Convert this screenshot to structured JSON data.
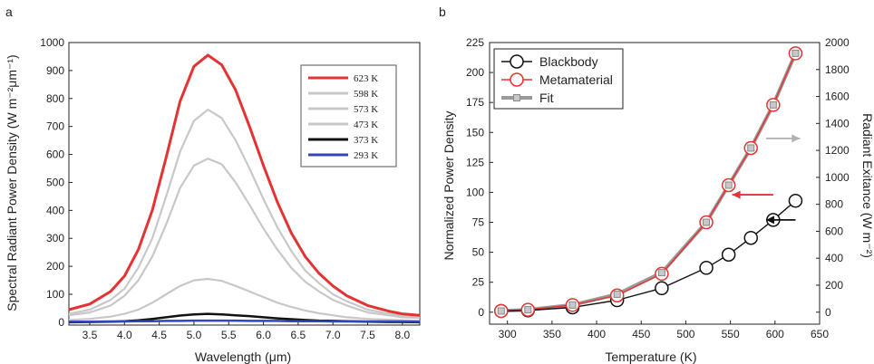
{
  "chart_data": [
    {
      "panel_label": "a",
      "type": "line",
      "xlabel": "Wavelength (μm)",
      "ylabel": "Spectral Radiant Power Density (W m⁻²μm⁻¹)",
      "xlim": [
        3.2,
        8.25
      ],
      "ylim": [
        -10,
        1000
      ],
      "xticks": [
        "3.5",
        "4.0",
        "4.5",
        "5.0",
        "5.5",
        "6.0",
        "6.5",
        "7.0",
        "7.5",
        "8.0"
      ],
      "yticks": [
        "0",
        "100",
        "200",
        "300",
        "400",
        "500",
        "600",
        "700",
        "800",
        "900",
        "1000"
      ],
      "legend_position": "top-right",
      "x": [
        3.2,
        3.5,
        3.8,
        4.0,
        4.2,
        4.4,
        4.6,
        4.8,
        5.0,
        5.2,
        5.4,
        5.6,
        5.8,
        6.0,
        6.2,
        6.4,
        6.6,
        6.8,
        7.0,
        7.2,
        7.5,
        7.8,
        8.0,
        8.25
      ],
      "series": [
        {
          "name": "623 K",
          "color": "#e53232",
          "values": [
            45,
            65,
            110,
            165,
            260,
            400,
            590,
            790,
            915,
            955,
            920,
            830,
            700,
            560,
            430,
            320,
            235,
            175,
            130,
            95,
            60,
            40,
            30,
            25
          ]
        },
        {
          "name": "598 K",
          "color": "#c8c8c8",
          "values": [
            30,
            45,
            80,
            120,
            195,
            300,
            450,
            610,
            720,
            760,
            730,
            650,
            550,
            440,
            340,
            255,
            185,
            140,
            100,
            75,
            45,
            30,
            24,
            20
          ]
        },
        {
          "name": "573 K",
          "color": "#c8c8c8",
          "values": [
            25,
            35,
            60,
            95,
            150,
            235,
            350,
            480,
            560,
            585,
            565,
            500,
            420,
            335,
            260,
            195,
            145,
            110,
            80,
            60,
            35,
            25,
            18,
            15
          ]
        },
        {
          "name": "473 K",
          "color": "#c8c8c8",
          "values": [
            8,
            12,
            20,
            30,
            45,
            70,
            100,
            130,
            150,
            155,
            148,
            130,
            110,
            90,
            70,
            55,
            42,
            32,
            25,
            18,
            12,
            9,
            7,
            5
          ]
        },
        {
          "name": "373 K",
          "color": "#111111",
          "values": [
            0,
            1,
            2,
            4,
            7,
            12,
            18,
            24,
            28,
            30,
            28,
            25,
            22,
            18,
            14,
            11,
            8,
            6,
            5,
            4,
            2,
            1,
            1,
            0
          ]
        },
        {
          "name": "293 K",
          "color": "#3345b8",
          "values": [
            2,
            2,
            3,
            3,
            4,
            4,
            5,
            5,
            6,
            6,
            6,
            6,
            5,
            5,
            5,
            4,
            4,
            4,
            3,
            3,
            3,
            3,
            3,
            2
          ]
        }
      ]
    },
    {
      "panel_label": "b",
      "type": "line",
      "xlabel": "Temperature (K)",
      "ylabel": "Normalized Power Density",
      "y2label": "Radiant Exitance (W m⁻²)",
      "xlim": [
        280,
        650
      ],
      "ylim": [
        -10,
        225
      ],
      "y2lim": [
        -89,
        2000
      ],
      "xticks": [
        "300",
        "350",
        "400",
        "450",
        "500",
        "550",
        "600",
        "650"
      ],
      "yticks": [
        "0",
        "25",
        "50",
        "75",
        "100",
        "125",
        "150",
        "175",
        "200",
        "225"
      ],
      "y2ticks": [
        "0",
        "200",
        "400",
        "600",
        "800",
        "1000",
        "1200",
        "1400",
        "1600",
        "1800",
        "2000"
      ],
      "legend_position": "top-left",
      "x": [
        293,
        323,
        373,
        423,
        473,
        523,
        548,
        573,
        598,
        623
      ],
      "series": [
        {
          "name": "Blackbody",
          "color": "#111111",
          "marker": "circle",
          "values": [
            1,
            1.5,
            4,
            10,
            20,
            37,
            48,
            62,
            77,
            93
          ]
        },
        {
          "name": "Metamaterial",
          "color": "#e53232",
          "marker": "circle",
          "values": [
            1,
            2,
            6,
            14,
            32,
            75,
            106,
            137,
            173,
            216
          ]
        },
        {
          "name": "Fit",
          "color": "#9a9a9a",
          "marker": "square",
          "values": [
            1,
            2,
            6,
            15,
            33,
            75,
            106,
            137,
            173,
            216
          ]
        }
      ]
    }
  ]
}
